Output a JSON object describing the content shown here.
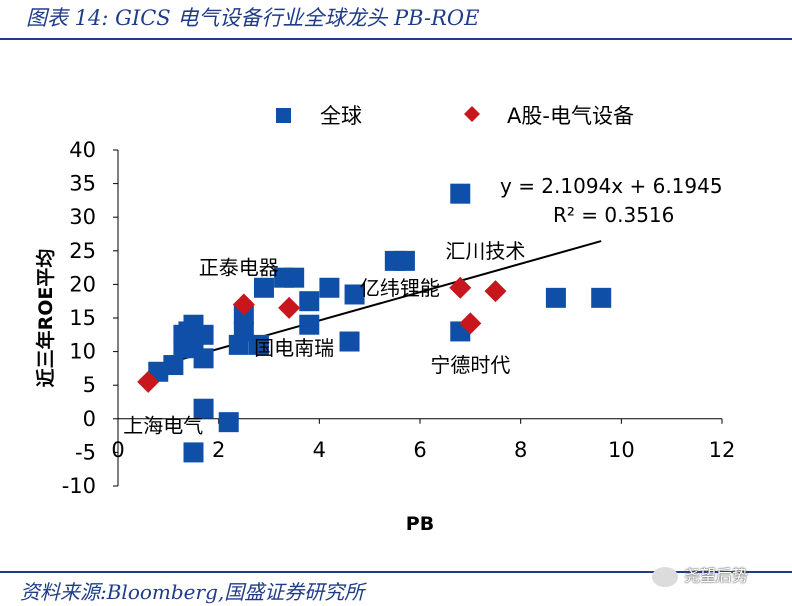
{
  "figure": {
    "title": "图表 14:  GICS 电气设备行业全球龙头 PB-ROE",
    "source": "资料来源:Bloomberg,国盛证券研究所",
    "watermark": "尧望后势"
  },
  "chart_data": {
    "type": "scatter",
    "xlabel": "PB",
    "ylabel": "近三年ROE平均",
    "xlim": [
      0,
      12
    ],
    "ylim": [
      -10,
      40
    ],
    "xticks": [
      0,
      2,
      4,
      6,
      8,
      10,
      12
    ],
    "yticks": [
      -10,
      -5,
      0,
      5,
      10,
      15,
      20,
      25,
      30,
      35,
      40
    ],
    "legend_position": "top",
    "series": [
      {
        "name": "全球",
        "marker": "square",
        "color": "#0f4fa8",
        "points": [
          [
            0.8,
            7
          ],
          [
            1.1,
            8
          ],
          [
            1.3,
            10.5
          ],
          [
            1.3,
            12.5
          ],
          [
            1.4,
            13
          ],
          [
            1.5,
            14
          ],
          [
            1.5,
            11
          ],
          [
            1.7,
            12.5
          ],
          [
            1.7,
            9
          ],
          [
            1.5,
            -5
          ],
          [
            1.7,
            1.5
          ],
          [
            2.2,
            -0.5
          ],
          [
            2.4,
            11
          ],
          [
            2.5,
            13
          ],
          [
            2.5,
            15.5
          ],
          [
            2.8,
            11
          ],
          [
            2.9,
            19.5
          ],
          [
            3.3,
            21
          ],
          [
            3.5,
            21
          ],
          [
            3.8,
            17.5
          ],
          [
            3.8,
            14
          ],
          [
            4.2,
            19.5
          ],
          [
            4.6,
            11.5
          ],
          [
            4.7,
            18.5
          ],
          [
            5.5,
            23.5
          ],
          [
            5.7,
            23.5
          ],
          [
            6.8,
            13
          ],
          [
            6.8,
            33.5
          ],
          [
            8.7,
            18
          ],
          [
            9.6,
            18
          ]
        ]
      },
      {
        "name": "A股-电气设备",
        "marker": "diamond",
        "color": "#c8161d",
        "points": [
          [
            0.6,
            5.5
          ],
          [
            2.5,
            17
          ],
          [
            3.4,
            16.5
          ],
          [
            6.8,
            19.5
          ],
          [
            7.0,
            14.2
          ],
          [
            7.5,
            19
          ]
        ]
      }
    ],
    "trendline": {
      "slope": 2.1094,
      "intercept": 6.1945,
      "x_range": [
        0.8,
        9.6
      ],
      "equation": "y = 2.1094x + 6.1945",
      "r_squared": "R² = 0.3516"
    },
    "annotations": [
      {
        "text": "正泰电器",
        "x": 2.4,
        "y": 22.5
      },
      {
        "text": "亿纬锂能",
        "x": 5.6,
        "y": 19.5
      },
      {
        "text": "国电南瑞",
        "x": 3.5,
        "y": 10.5
      },
      {
        "text": "宁德时代",
        "x": 7.0,
        "y": 8.0
      },
      {
        "text": "汇川技术",
        "x": 7.3,
        "y": 25.0
      },
      {
        "text": "上海电气",
        "x": 0.9,
        "y": -1.0
      }
    ]
  }
}
